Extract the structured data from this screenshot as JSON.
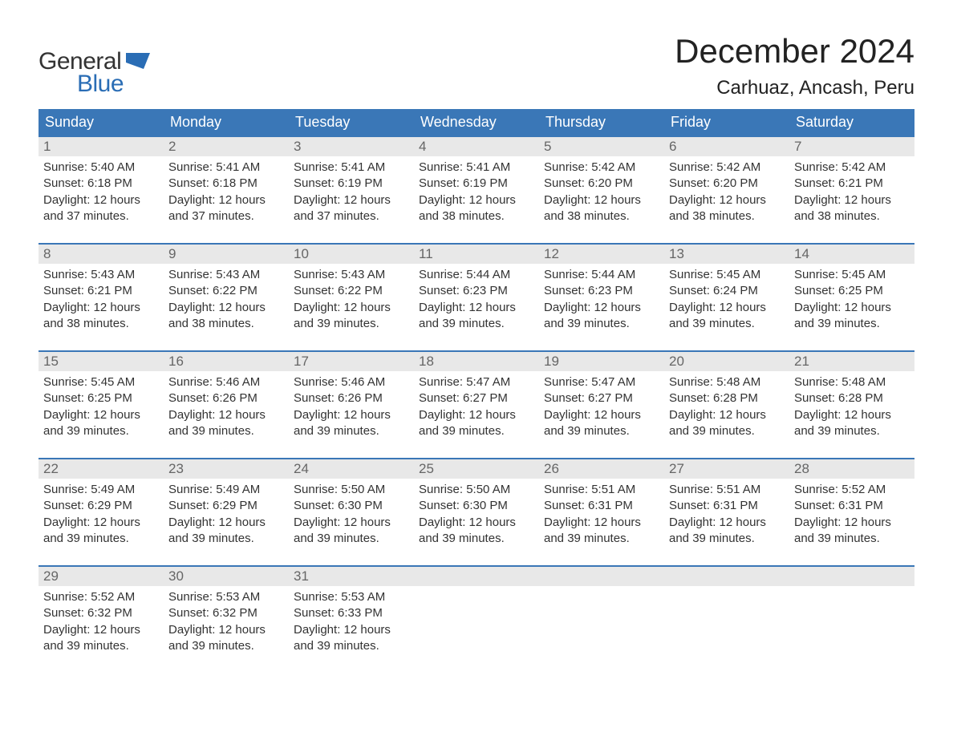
{
  "logo": {
    "text1": "General",
    "text2": "Blue",
    "shape_color": "#2a6db5"
  },
  "header": {
    "month_title": "December 2024",
    "location": "Carhuaz, Ancash, Peru"
  },
  "colors": {
    "header_bg": "#3a77b7",
    "header_text": "#ffffff",
    "daynum_bg": "#e8e8e8",
    "daynum_text": "#666666",
    "body_text": "#333333",
    "week_border": "#3a77b7",
    "page_bg": "#ffffff",
    "logo_blue": "#2a6db5"
  },
  "typography": {
    "title_fontsize": 42,
    "location_fontsize": 24,
    "dayheader_fontsize": 18,
    "daynum_fontsize": 17,
    "body_fontsize": 15,
    "font_family": "Arial"
  },
  "day_names": [
    "Sunday",
    "Monday",
    "Tuesday",
    "Wednesday",
    "Thursday",
    "Friday",
    "Saturday"
  ],
  "weeks": [
    [
      {
        "n": "1",
        "sr": "Sunrise: 5:40 AM",
        "ss": "Sunset: 6:18 PM",
        "dl": "Daylight: 12 hours and 37 minutes."
      },
      {
        "n": "2",
        "sr": "Sunrise: 5:41 AM",
        "ss": "Sunset: 6:18 PM",
        "dl": "Daylight: 12 hours and 37 minutes."
      },
      {
        "n": "3",
        "sr": "Sunrise: 5:41 AM",
        "ss": "Sunset: 6:19 PM",
        "dl": "Daylight: 12 hours and 37 minutes."
      },
      {
        "n": "4",
        "sr": "Sunrise: 5:41 AM",
        "ss": "Sunset: 6:19 PM",
        "dl": "Daylight: 12 hours and 38 minutes."
      },
      {
        "n": "5",
        "sr": "Sunrise: 5:42 AM",
        "ss": "Sunset: 6:20 PM",
        "dl": "Daylight: 12 hours and 38 minutes."
      },
      {
        "n": "6",
        "sr": "Sunrise: 5:42 AM",
        "ss": "Sunset: 6:20 PM",
        "dl": "Daylight: 12 hours and 38 minutes."
      },
      {
        "n": "7",
        "sr": "Sunrise: 5:42 AM",
        "ss": "Sunset: 6:21 PM",
        "dl": "Daylight: 12 hours and 38 minutes."
      }
    ],
    [
      {
        "n": "8",
        "sr": "Sunrise: 5:43 AM",
        "ss": "Sunset: 6:21 PM",
        "dl": "Daylight: 12 hours and 38 minutes."
      },
      {
        "n": "9",
        "sr": "Sunrise: 5:43 AM",
        "ss": "Sunset: 6:22 PM",
        "dl": "Daylight: 12 hours and 38 minutes."
      },
      {
        "n": "10",
        "sr": "Sunrise: 5:43 AM",
        "ss": "Sunset: 6:22 PM",
        "dl": "Daylight: 12 hours and 39 minutes."
      },
      {
        "n": "11",
        "sr": "Sunrise: 5:44 AM",
        "ss": "Sunset: 6:23 PM",
        "dl": "Daylight: 12 hours and 39 minutes."
      },
      {
        "n": "12",
        "sr": "Sunrise: 5:44 AM",
        "ss": "Sunset: 6:23 PM",
        "dl": "Daylight: 12 hours and 39 minutes."
      },
      {
        "n": "13",
        "sr": "Sunrise: 5:45 AM",
        "ss": "Sunset: 6:24 PM",
        "dl": "Daylight: 12 hours and 39 minutes."
      },
      {
        "n": "14",
        "sr": "Sunrise: 5:45 AM",
        "ss": "Sunset: 6:25 PM",
        "dl": "Daylight: 12 hours and 39 minutes."
      }
    ],
    [
      {
        "n": "15",
        "sr": "Sunrise: 5:45 AM",
        "ss": "Sunset: 6:25 PM",
        "dl": "Daylight: 12 hours and 39 minutes."
      },
      {
        "n": "16",
        "sr": "Sunrise: 5:46 AM",
        "ss": "Sunset: 6:26 PM",
        "dl": "Daylight: 12 hours and 39 minutes."
      },
      {
        "n": "17",
        "sr": "Sunrise: 5:46 AM",
        "ss": "Sunset: 6:26 PM",
        "dl": "Daylight: 12 hours and 39 minutes."
      },
      {
        "n": "18",
        "sr": "Sunrise: 5:47 AM",
        "ss": "Sunset: 6:27 PM",
        "dl": "Daylight: 12 hours and 39 minutes."
      },
      {
        "n": "19",
        "sr": "Sunrise: 5:47 AM",
        "ss": "Sunset: 6:27 PM",
        "dl": "Daylight: 12 hours and 39 minutes."
      },
      {
        "n": "20",
        "sr": "Sunrise: 5:48 AM",
        "ss": "Sunset: 6:28 PM",
        "dl": "Daylight: 12 hours and 39 minutes."
      },
      {
        "n": "21",
        "sr": "Sunrise: 5:48 AM",
        "ss": "Sunset: 6:28 PM",
        "dl": "Daylight: 12 hours and 39 minutes."
      }
    ],
    [
      {
        "n": "22",
        "sr": "Sunrise: 5:49 AM",
        "ss": "Sunset: 6:29 PM",
        "dl": "Daylight: 12 hours and 39 minutes."
      },
      {
        "n": "23",
        "sr": "Sunrise: 5:49 AM",
        "ss": "Sunset: 6:29 PM",
        "dl": "Daylight: 12 hours and 39 minutes."
      },
      {
        "n": "24",
        "sr": "Sunrise: 5:50 AM",
        "ss": "Sunset: 6:30 PM",
        "dl": "Daylight: 12 hours and 39 minutes."
      },
      {
        "n": "25",
        "sr": "Sunrise: 5:50 AM",
        "ss": "Sunset: 6:30 PM",
        "dl": "Daylight: 12 hours and 39 minutes."
      },
      {
        "n": "26",
        "sr": "Sunrise: 5:51 AM",
        "ss": "Sunset: 6:31 PM",
        "dl": "Daylight: 12 hours and 39 minutes."
      },
      {
        "n": "27",
        "sr": "Sunrise: 5:51 AM",
        "ss": "Sunset: 6:31 PM",
        "dl": "Daylight: 12 hours and 39 minutes."
      },
      {
        "n": "28",
        "sr": "Sunrise: 5:52 AM",
        "ss": "Sunset: 6:31 PM",
        "dl": "Daylight: 12 hours and 39 minutes."
      }
    ],
    [
      {
        "n": "29",
        "sr": "Sunrise: 5:52 AM",
        "ss": "Sunset: 6:32 PM",
        "dl": "Daylight: 12 hours and 39 minutes."
      },
      {
        "n": "30",
        "sr": "Sunrise: 5:53 AM",
        "ss": "Sunset: 6:32 PM",
        "dl": "Daylight: 12 hours and 39 minutes."
      },
      {
        "n": "31",
        "sr": "Sunrise: 5:53 AM",
        "ss": "Sunset: 6:33 PM",
        "dl": "Daylight: 12 hours and 39 minutes."
      },
      {
        "empty": true
      },
      {
        "empty": true
      },
      {
        "empty": true
      },
      {
        "empty": true
      }
    ]
  ]
}
